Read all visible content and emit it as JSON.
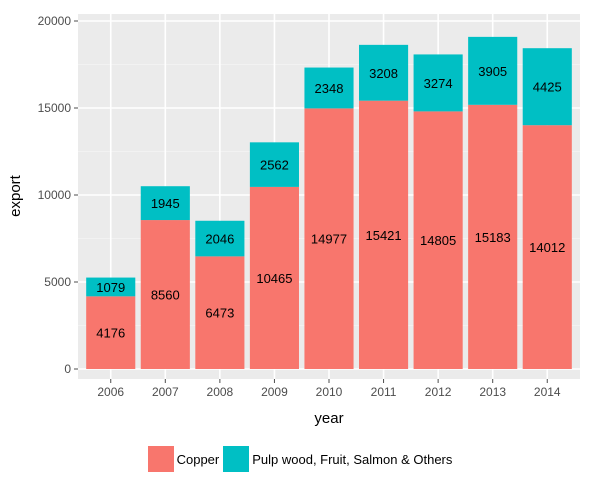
{
  "chart_data": {
    "type": "bar",
    "stacked": true,
    "xlabel": "year",
    "ylabel": "export",
    "ylim": [
      0,
      20000
    ],
    "yticks": [
      0,
      5000,
      10000,
      15000,
      20000
    ],
    "categories": [
      "2006",
      "2007",
      "2008",
      "2009",
      "2010",
      "2011",
      "2012",
      "2013",
      "2014"
    ],
    "series": [
      {
        "name": "Copper",
        "color": "#F8766D",
        "values": [
          4176,
          8560,
          6473,
          10465,
          14977,
          15421,
          14805,
          15183,
          14012
        ]
      },
      {
        "name": "Pulp wood, Fruit, Salmon & Others",
        "color": "#00BFC4",
        "values": [
          1079,
          1945,
          2046,
          2562,
          2348,
          3208,
          3274,
          3905,
          4425
        ]
      }
    ],
    "grid": true,
    "legend_position": "bottom"
  }
}
